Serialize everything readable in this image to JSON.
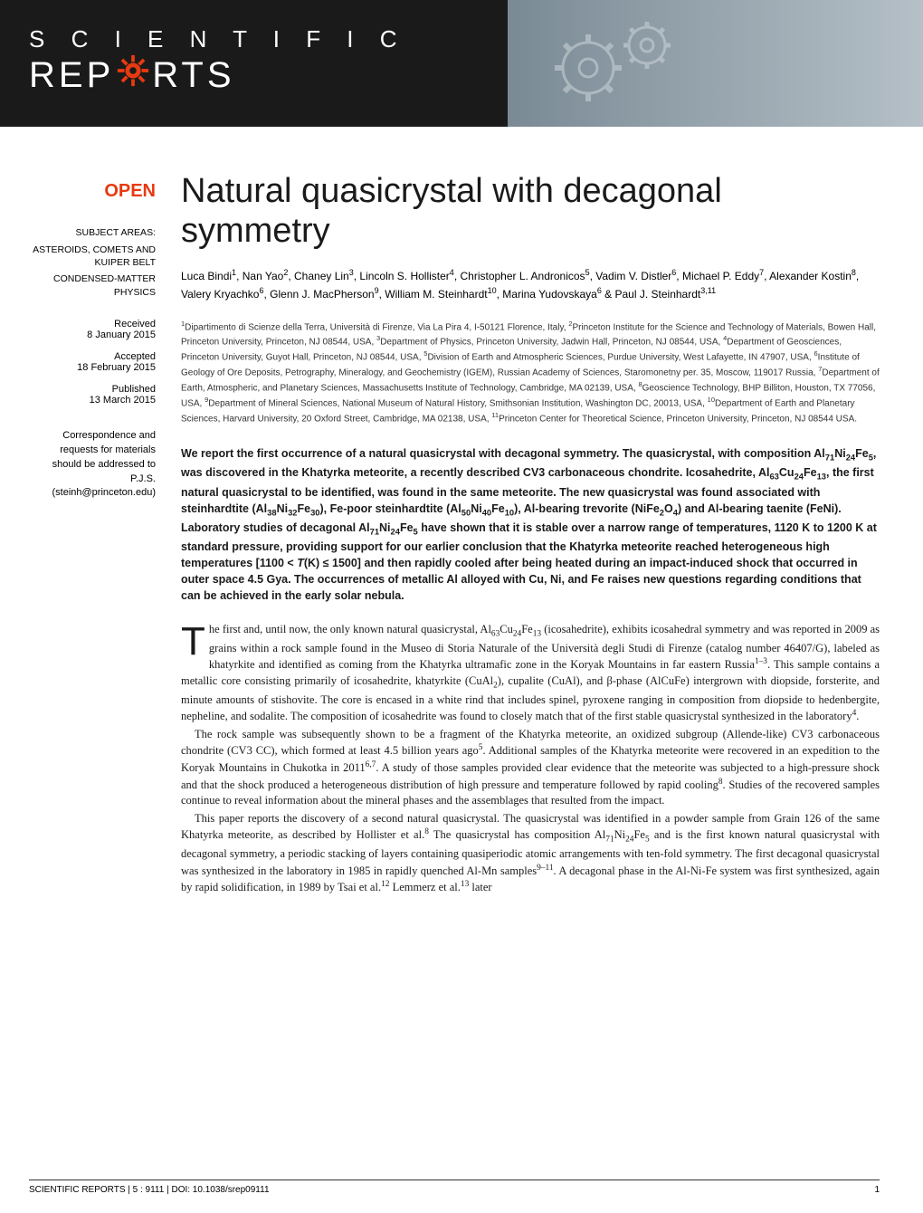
{
  "journal": {
    "logo_line1": "S C I E N T I F I C",
    "logo_line2_pre": "REP",
    "logo_line2_post": "RTS",
    "logo_gear_color": "#e63a11",
    "banner_gear_color": "#9aa6af"
  },
  "sidebar": {
    "open_badge": "OPEN",
    "subject_areas_label": "SUBJECT AREAS:",
    "subject_areas": [
      "ASTEROIDS, COMETS AND KUIPER BELT",
      "CONDENSED-MATTER PHYSICS"
    ],
    "received_label": "Received",
    "received_date": "8 January 2015",
    "accepted_label": "Accepted",
    "accepted_date": "18 February 2015",
    "published_label": "Published",
    "published_date": "13 March 2015",
    "correspondence": "Correspondence and requests for materials should be addressed to P.J.S. (steinh@princeton.edu)"
  },
  "article": {
    "title": "Natural quasicrystal with decagonal symmetry",
    "authors_html": "Luca Bindi<sup>1</sup>, Nan Yao<sup>2</sup>, Chaney Lin<sup>3</sup>, Lincoln S. Hollister<sup>4</sup>, Christopher L. Andronicos<sup>5</sup>, Vadim V. Distler<sup>6</sup>, Michael P. Eddy<sup>7</sup>, Alexander Kostin<sup>8</sup>, Valery Kryachko<sup>6</sup>, Glenn J. MacPherson<sup>9</sup>, William M. Steinhardt<sup>10</sup>, Marina Yudovskaya<sup>6</sup> & Paul J. Steinhardt<sup>3,11</sup>",
    "affiliations_html": "<sup>1</sup>Dipartimento di Scienze della Terra, Università di Firenze, Via La Pira 4, I-50121 Florence, Italy, <sup>2</sup>Princeton Institute for the Science and Technology of Materials, Bowen Hall, Princeton University, Princeton, NJ 08544, USA, <sup>3</sup>Department of Physics, Princeton University, Jadwin Hall, Princeton, NJ 08544, USA, <sup>4</sup>Department of Geosciences, Princeton University, Guyot Hall, Princeton, NJ 08544, USA, <sup>5</sup>Division of Earth and Atmospheric Sciences, Purdue University, West Lafayette, IN 47907, USA, <sup>6</sup>Institute of Geology of Ore Deposits, Petrography, Mineralogy, and Geochemistry (IGEM), Russian Academy of Sciences, Staromonetny per. 35, Moscow, 119017 Russia, <sup>7</sup>Department of Earth, Atmospheric, and Planetary Sciences, Massachusetts Institute of Technology, Cambridge, MA 02139, USA, <sup>8</sup>Geoscience Technology, BHP Billiton, Houston, TX 77056, USA, <sup>9</sup>Department of Mineral Sciences, National Museum of Natural History, Smithsonian Institution, Washington DC, 20013, USA, <sup>10</sup>Department of Earth and Planetary Sciences, Harvard University, 20 Oxford Street, Cambridge, MA 02138, USA, <sup>11</sup>Princeton Center for Theoretical Science, Princeton University, Princeton, NJ 08544 USA.",
    "abstract_html": "We report the first occurrence of a natural quasicrystal with decagonal symmetry. The quasicrystal, with composition Al<sub>71</sub>Ni<sub>24</sub>Fe<sub>5</sub>, was discovered in the Khatyrka meteorite, a recently described CV3 carbonaceous chondrite. Icosahedrite, Al<sub>63</sub>Cu<sub>24</sub>Fe<sub>13</sub>, the first natural quasicrystal to be identified, was found in the same meteorite. The new quasicrystal was found associated with steinhardtite (Al<sub>38</sub>Ni<sub>32</sub>Fe<sub>30</sub>), Fe-poor steinhardtite (Al<sub>50</sub>Ni<sub>40</sub>Fe<sub>10</sub>), Al-bearing trevorite (NiFe<sub>2</sub>O<sub>4</sub>) and Al-bearing taenite (FeNi). Laboratory studies of decagonal Al<sub>71</sub>Ni<sub>24</sub>Fe<sub>5</sub> have shown that it is stable over a narrow range of temperatures, 1120 K to 1200 K at standard pressure, providing support for our earlier conclusion that the Khatyrka meteorite reached heterogeneous high temperatures [1100 < <i>T</i>(K) ≤ 1500] and then rapidly cooled after being heated during an impact-induced shock that occurred in outer space 4.5 Gya. The occurrences of metallic Al alloyed with Cu, Ni, and Fe raises new questions regarding conditions that can be achieved in the early solar nebula.",
    "body_paragraphs_html": [
      "The first and, until now, the only known natural quasicrystal, Al<sub>63</sub>Cu<sub>24</sub>Fe<sub>13</sub> (icosahedrite), exhibits icosahedral symmetry and was reported in 2009 as grains within a rock sample found in the Museo di Storia Naturale of the Università degli Studi di Firenze (catalog number 46407/G), labeled as khatyrkite and identified as coming from the Khatyrka ultramafic zone in the Koryak Mountains in far eastern Russia<sup>1–3</sup>. This sample contains a metallic core consisting primarily of icosahedrite, khatyrkite (CuAl<sub>2</sub>), cupalite (CuAl), and β-phase (AlCuFe) intergrown with diopside, forsterite, and minute amounts of stishovite. The core is encased in a white rind that includes spinel, pyroxene ranging in composition from diopside to hedenbergite, nepheline, and sodalite. The composition of icosahedrite was found to closely match that of the first stable quasicrystal synthesized in the laboratory<sup>4</sup>.",
      "The rock sample was subsequently shown to be a fragment of the Khatyrka meteorite, an oxidized subgroup (Allende-like) CV3 carbonaceous chondrite (CV3 CC), which formed at least 4.5 billion years ago<sup>5</sup>. Additional samples of the Khatyrka meteorite were recovered in an expedition to the Koryak Mountains in Chukotka in 2011<sup>6,7</sup>. A study of those samples provided clear evidence that the meteorite was subjected to a high-pressure shock and that the shock produced a heterogeneous distribution of high pressure and temperature followed by rapid cooling<sup>8</sup>. Studies of the recovered samples continue to reveal information about the mineral phases and the assemblages that resulted from the impact.",
      "This paper reports the discovery of a second natural quasicrystal. The quasicrystal was identified in a powder sample from Grain 126 of the same Khatyrka meteorite, as described by Hollister et al.<sup>8</sup> The quasicrystal has composition Al<sub>71</sub>Ni<sub>24</sub>Fe<sub>5</sub> and is the first known natural quasicrystal with decagonal symmetry, a periodic stacking of layers containing quasiperiodic atomic arrangements with ten-fold symmetry. The first decagonal quasicrystal was synthesized in the laboratory in 1985 in rapidly quenched Al-Mn samples<sup>9–11</sup>. A decagonal phase in the Al-Ni-Fe system was first synthesized, again by rapid solidification, in 1989 by Tsai et al.<sup>12</sup> Lemmerz et al.<sup>13</sup> later"
    ]
  },
  "footer": {
    "journal_name": "SCIENTIFIC REPORTS",
    "citation": " | 5 : 9111 | DOI: 10.1038/srep09111",
    "page_number": "1"
  },
  "colors": {
    "open_badge": "#e63a11",
    "banner_dark": "#1a1a1a",
    "banner_light": "#b5c0c7",
    "text": "#1a1a1a"
  }
}
